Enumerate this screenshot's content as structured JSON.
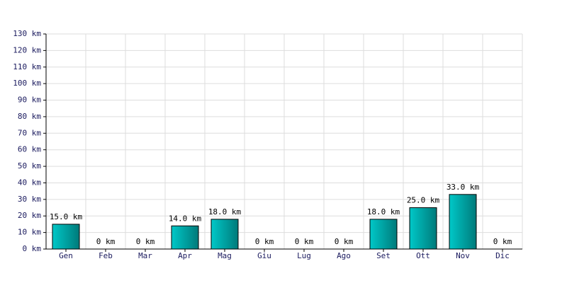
{
  "chart_data": {
    "type": "bar",
    "categories": [
      "Gen",
      "Feb",
      "Mar",
      "Apr",
      "Mag",
      "Giu",
      "Lug",
      "Ago",
      "Set",
      "Ott",
      "Nov",
      "Dic"
    ],
    "values": [
      15,
      0,
      0,
      14,
      18,
      0,
      0,
      0,
      18,
      25,
      33,
      0
    ],
    "value_labels": [
      "15.0 km",
      "0 km",
      "0 km",
      "14.0 km",
      "18.0 km",
      "0 km",
      "0 km",
      "0 km",
      "18.0 km",
      "25.0 km",
      "33.0 km",
      "0 km"
    ],
    "color": "#00c8c8",
    "ylim": [
      0,
      130
    ],
    "yticks": [
      {
        "value": 0,
        "label": "0 km"
      },
      {
        "value": 10,
        "label": "10 km"
      },
      {
        "value": 20,
        "label": "20 km"
      },
      {
        "value": 30,
        "label": "30 km"
      },
      {
        "value": 40,
        "label": "40 km"
      },
      {
        "value": 50,
        "label": "50 km"
      },
      {
        "value": 60,
        "label": "60 km"
      },
      {
        "value": 70,
        "label": "70 km"
      },
      {
        "value": 80,
        "label": "80 km"
      },
      {
        "value": 90,
        "label": "90 km"
      },
      {
        "value": 100,
        "label": "100 km"
      },
      {
        "value": 110,
        "label": "110 km"
      },
      {
        "value": 120,
        "label": "120 km"
      },
      {
        "value": 130,
        "label": "130 km"
      }
    ],
    "grid": true
  }
}
